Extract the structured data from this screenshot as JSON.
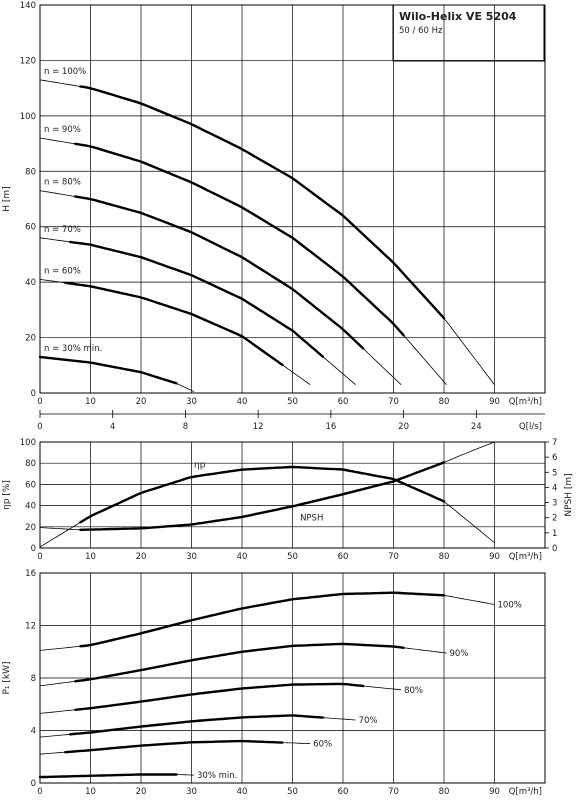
{
  "title_box": {
    "title": "Wilo-Helix VE 5204",
    "subtitle": "50 / 60 Hz"
  },
  "chart_data": [
    {
      "type": "line",
      "name": "head",
      "ylabel": "H [m]",
      "xlabel": "Q[m³/h]",
      "xlabel2": "Q[l/s]",
      "xlim": [
        0,
        100
      ],
      "ylim": [
        0,
        140
      ],
      "xticks": [
        0,
        10,
        20,
        30,
        40,
        50,
        60,
        70,
        80,
        90
      ],
      "xticks2": [
        0,
        4,
        8,
        12,
        16,
        20,
        24
      ],
      "yticks": [
        0,
        20,
        40,
        60,
        80,
        100,
        120,
        140
      ],
      "grid": true,
      "series": [
        {
          "name": "n = 100%",
          "x": [
            0,
            10,
            20,
            30,
            40,
            50,
            60,
            70,
            80,
            90
          ],
          "y": [
            113,
            110,
            104.5,
            97,
            88,
            77.5,
            64,
            47,
            27,
            3
          ],
          "bold": [
            8,
            80
          ]
        },
        {
          "name": "n = 90%",
          "x": [
            0,
            10,
            20,
            30,
            40,
            50,
            60,
            70,
            80.5
          ],
          "y": [
            92,
            89,
            83.5,
            76,
            67,
            56,
            42,
            25,
            3
          ],
          "bold": [
            7,
            72
          ]
        },
        {
          "name": "n = 80%",
          "x": [
            0,
            10,
            20,
            30,
            40,
            50,
            60,
            71.5
          ],
          "y": [
            73,
            70,
            65,
            58,
            49,
            37.5,
            23,
            3
          ],
          "bold": [
            7,
            64
          ]
        },
        {
          "name": "n = 70%",
          "x": [
            0,
            10,
            20,
            30,
            40,
            50,
            62.5
          ],
          "y": [
            56,
            53.5,
            49,
            42.5,
            34,
            22.5,
            3
          ],
          "bold": [
            6,
            56
          ]
        },
        {
          "name": "n = 60%",
          "x": [
            0,
            10,
            20,
            30,
            40,
            53.5
          ],
          "y": [
            41,
            38.5,
            34.5,
            28.5,
            20.5,
            3
          ],
          "bold": [
            5,
            48
          ]
        },
        {
          "name": "n = 30% min.",
          "x": [
            0,
            10,
            20,
            27,
            30.5
          ],
          "y": [
            13,
            11,
            7.5,
            3.5,
            0.5
          ],
          "bold": [
            0,
            27
          ]
        }
      ]
    },
    {
      "type": "line",
      "name": "efficiency-npsh",
      "ylabel": "ηp [%]",
      "ylabel2": "NPSH [m]",
      "xlabel": "Q[m³/h]",
      "xlim": [
        0,
        100
      ],
      "ylim": [
        0,
        100
      ],
      "ylim2": [
        0,
        7
      ],
      "xticks": [
        0,
        10,
        20,
        30,
        40,
        50,
        60,
        70,
        80,
        90
      ],
      "yticks": [
        0,
        20,
        40,
        60,
        80,
        100
      ],
      "yticks2": [
        0,
        1,
        2,
        3,
        4,
        5,
        6,
        7
      ],
      "grid": true,
      "series": [
        {
          "name": "ηp",
          "axis": "left",
          "x": [
            0,
            10,
            20,
            30,
            40,
            50,
            60,
            70,
            80,
            90
          ],
          "y": [
            1,
            30,
            52,
            67,
            74,
            76.5,
            74,
            65,
            44,
            5
          ],
          "bold": [
            8,
            80
          ]
        },
        {
          "name": "NPSH",
          "axis": "right",
          "x": [
            0,
            8,
            20,
            30,
            40,
            50,
            60,
            70,
            80,
            85,
            90
          ],
          "y": [
            1.35,
            1.2,
            1.3,
            1.55,
            2.05,
            2.75,
            3.55,
            4.4,
            5.65,
            6.35,
            7.0
          ],
          "bold": [
            8,
            80
          ]
        }
      ]
    },
    {
      "type": "line",
      "name": "power",
      "ylabel": "P₁ [kW]",
      "xlabel": "Q[m³/h]",
      "xlim": [
        0,
        100
      ],
      "ylim": [
        0,
        16
      ],
      "xticks": [
        0,
        10,
        20,
        30,
        40,
        50,
        60,
        70,
        80,
        90
      ],
      "yticks": [
        0,
        4,
        8,
        12,
        16
      ],
      "grid": true,
      "series": [
        {
          "name": "100%",
          "x": [
            0,
            10,
            20,
            30,
            40,
            50,
            60,
            70,
            80,
            90
          ],
          "y": [
            10.1,
            10.5,
            11.4,
            12.4,
            13.3,
            14.0,
            14.4,
            14.5,
            14.3,
            13.6
          ],
          "bold": [
            8,
            80
          ]
        },
        {
          "name": "90%",
          "x": [
            0,
            10,
            20,
            30,
            40,
            50,
            60,
            70,
            80.5
          ],
          "y": [
            7.4,
            7.9,
            8.6,
            9.35,
            10.0,
            10.45,
            10.6,
            10.4,
            9.9
          ],
          "bold": [
            7,
            72
          ]
        },
        {
          "name": "80%",
          "x": [
            0,
            10,
            20,
            30,
            40,
            50,
            60,
            71.5
          ],
          "y": [
            5.3,
            5.7,
            6.2,
            6.75,
            7.2,
            7.5,
            7.55,
            7.1
          ],
          "bold": [
            7,
            64
          ]
        },
        {
          "name": "70%",
          "x": [
            0,
            10,
            20,
            30,
            40,
            50,
            62.5
          ],
          "y": [
            3.5,
            3.85,
            4.3,
            4.7,
            5.0,
            5.15,
            4.8
          ],
          "bold": [
            6,
            56
          ]
        },
        {
          "name": "60%",
          "x": [
            0,
            10,
            20,
            30,
            40,
            53.5
          ],
          "y": [
            2.2,
            2.5,
            2.85,
            3.1,
            3.2,
            3.0
          ],
          "bold": [
            5,
            48
          ]
        },
        {
          "name": "30% min.",
          "x": [
            0,
            10,
            20,
            27,
            30.5
          ],
          "y": [
            0.45,
            0.55,
            0.65,
            0.65,
            0.6
          ],
          "bold": [
            0,
            27
          ]
        }
      ]
    }
  ]
}
